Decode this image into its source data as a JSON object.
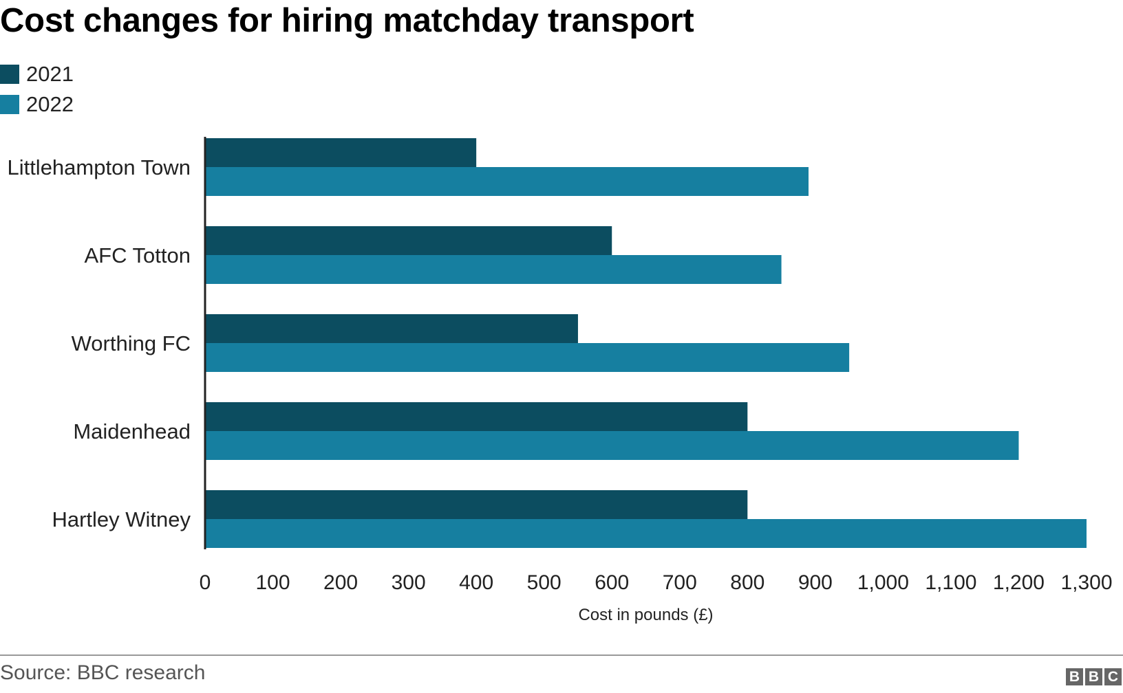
{
  "chart_data": {
    "type": "bar",
    "orientation": "horizontal",
    "title": "Cost changes for hiring matchday transport",
    "categories": [
      "Littlehampton Town",
      "AFC Totton",
      "Worthing FC",
      "Maidenhead",
      "Hartley Witney"
    ],
    "series": [
      {
        "name": "2021",
        "values": [
          400,
          600,
          550,
          800,
          800
        ]
      },
      {
        "name": "2022",
        "values": [
          890,
          850,
          950,
          1200,
          1300
        ]
      }
    ],
    "xlabel": "Cost in pounds (£)",
    "ylabel": "",
    "xlim": [
      0,
      1300
    ],
    "xticks": [
      0,
      100,
      200,
      300,
      400,
      500,
      600,
      700,
      800,
      900,
      1000,
      1100,
      1200,
      1300
    ],
    "tick_labels": [
      "0",
      "100",
      "200",
      "300",
      "400",
      "500",
      "600",
      "700",
      "800",
      "900",
      "1,000",
      "1,100",
      "1,200",
      "1,300"
    ],
    "grid": false,
    "legend_position": "top-left",
    "colors": {
      "2021": "#0c4d60",
      "2022": "#167fa0"
    },
    "source": "Source: BBC research"
  },
  "branding": {
    "logo_letters": [
      "B",
      "B",
      "C"
    ]
  }
}
